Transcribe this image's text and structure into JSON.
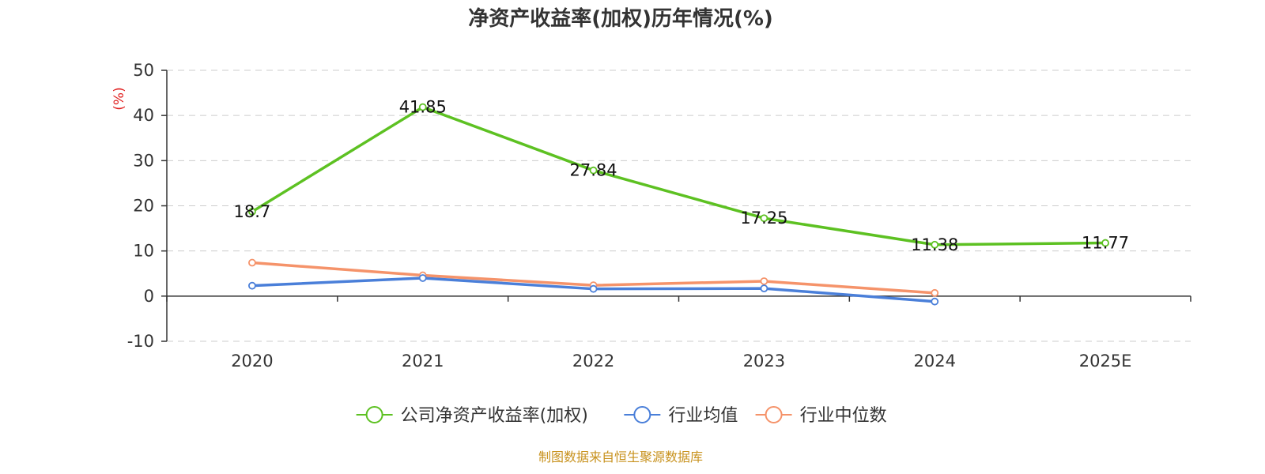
{
  "chart_data": {
    "type": "line",
    "title": "净资产收益率(加权)历年情况(%)",
    "ylabel": "(%)",
    "xlabel": "",
    "categories": [
      "2020",
      "2021",
      "2022",
      "2023",
      "2024",
      "2025E"
    ],
    "ylim": [
      -10,
      50
    ],
    "yticks": [
      50,
      40,
      30,
      20,
      10,
      0,
      -10
    ],
    "grid": true,
    "legend_position": "bottom",
    "series": [
      {
        "name": "公司净资产收益率(加权)",
        "color": "#5dc122",
        "values": [
          18.7,
          41.85,
          27.84,
          17.25,
          11.38,
          11.77
        ],
        "labels": [
          "18.7",
          "41.85",
          "27.84",
          "17.25",
          "11.38",
          "11.77"
        ]
      },
      {
        "name": "行业均值",
        "color": "#4a7fd9",
        "values": [
          2.3,
          4.0,
          1.6,
          1.7,
          -1.2,
          null
        ]
      },
      {
        "name": "行业中位数",
        "color": "#f5936a",
        "values": [
          7.4,
          4.6,
          2.4,
          3.3,
          0.7,
          null
        ]
      }
    ]
  },
  "source_text": "制图数据来自恒生聚源数据库",
  "colors": {
    "unit": "#e02020",
    "source": "#c8921e"
  }
}
